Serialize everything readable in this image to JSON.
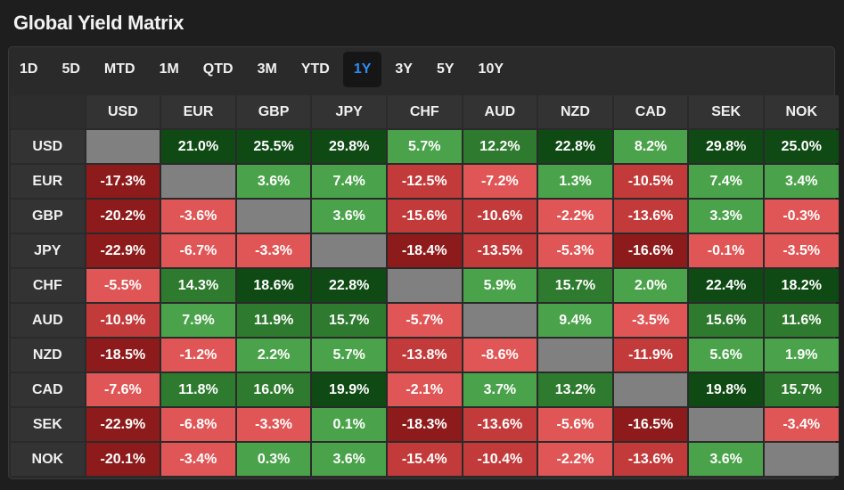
{
  "title": "Global Yield Matrix",
  "tabs": [
    {
      "label": "1D",
      "active": false
    },
    {
      "label": "5D",
      "active": false
    },
    {
      "label": "MTD",
      "active": false
    },
    {
      "label": "1M",
      "active": false
    },
    {
      "label": "QTD",
      "active": false
    },
    {
      "label": "3M",
      "active": false
    },
    {
      "label": "YTD",
      "active": false
    },
    {
      "label": "1Y",
      "active": true
    },
    {
      "label": "3Y",
      "active": false
    },
    {
      "label": "5Y",
      "active": false
    },
    {
      "label": "10Y",
      "active": false
    }
  ],
  "currencies": [
    "USD",
    "EUR",
    "GBP",
    "JPY",
    "CHF",
    "AUD",
    "NZD",
    "CAD",
    "SEK",
    "NOK"
  ],
  "matrix": [
    [
      "",
      "21.0%",
      "25.5%",
      "29.8%",
      "5.7%",
      "12.2%",
      "22.8%",
      "8.2%",
      "29.8%",
      "25.0%"
    ],
    [
      "-17.3%",
      "",
      "3.6%",
      "7.4%",
      "-12.5%",
      "-7.2%",
      "1.3%",
      "-10.5%",
      "7.4%",
      "3.4%"
    ],
    [
      "-20.2%",
      "-3.6%",
      "",
      "3.6%",
      "-15.6%",
      "-10.6%",
      "-2.2%",
      "-13.6%",
      "3.3%",
      "-0.3%"
    ],
    [
      "-22.9%",
      "-6.7%",
      "-3.3%",
      "",
      "-18.4%",
      "-13.5%",
      "-5.3%",
      "-16.6%",
      "-0.1%",
      "-3.5%"
    ],
    [
      "-5.5%",
      "14.3%",
      "18.6%",
      "22.8%",
      "",
      "5.9%",
      "15.7%",
      "2.0%",
      "22.4%",
      "18.2%"
    ],
    [
      "-10.9%",
      "7.9%",
      "11.9%",
      "15.7%",
      "-5.7%",
      "",
      "9.4%",
      "-3.5%",
      "15.6%",
      "11.6%"
    ],
    [
      "-18.5%",
      "-1.2%",
      "2.2%",
      "5.7%",
      "-13.8%",
      "-8.6%",
      "",
      "-11.9%",
      "5.6%",
      "1.9%"
    ],
    [
      "-7.6%",
      "11.8%",
      "16.0%",
      "19.9%",
      "-2.1%",
      "3.7%",
      "13.2%",
      "",
      "19.8%",
      "15.7%"
    ],
    [
      "-22.9%",
      "-6.8%",
      "-3.3%",
      "0.1%",
      "-18.3%",
      "-13.6%",
      "-5.6%",
      "-16.5%",
      "",
      "-3.4%"
    ],
    [
      "-20.1%",
      "-3.4%",
      "0.3%",
      "3.6%",
      "-15.4%",
      "-10.4%",
      "-2.2%",
      "-13.6%",
      "3.6%",
      ""
    ]
  ],
  "colors": {
    "active_tab_text": "#2f8cf0",
    "diagonal": "#808080",
    "positive_light": "#4aa34a",
    "positive_mid": "#2e7a2e",
    "positive_dark": "#0f4a14",
    "negative_light": "#e05555",
    "negative_mid": "#c23a3a",
    "negative_dark": "#8e1b1b"
  }
}
